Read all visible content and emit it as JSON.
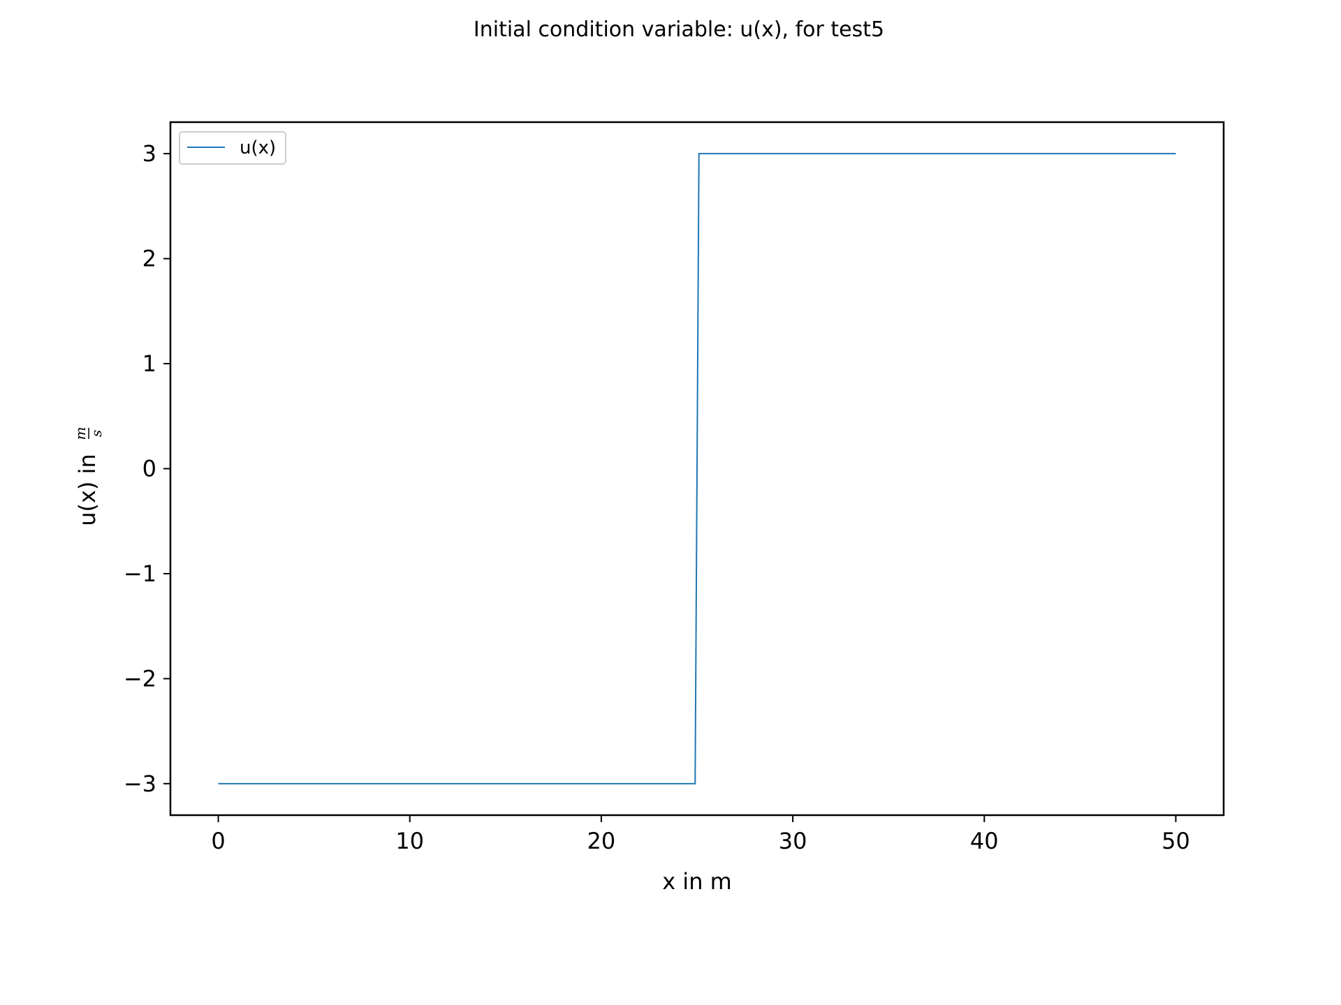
{
  "chart_data": {
    "type": "line",
    "title": "Initial condition variable: u(x), for test5",
    "xlabel": "x in m",
    "ylabel": "u(x) in",
    "ylabel_unit_numerator": "m",
    "ylabel_unit_denominator": "s",
    "xlim": [
      -2.5,
      52.5
    ],
    "ylim": [
      -3.3,
      3.3
    ],
    "xticks": [
      0,
      10,
      20,
      30,
      40,
      50
    ],
    "xtick_labels": [
      "0",
      "10",
      "20",
      "30",
      "40",
      "50"
    ],
    "yticks": [
      -3,
      -2,
      -1,
      0,
      1,
      2,
      3
    ],
    "ytick_labels": [
      "−3",
      "−2",
      "−1",
      "0",
      "1",
      "2",
      "3"
    ],
    "grid": false,
    "legend_position": "top-left",
    "series": [
      {
        "name": "u(x)",
        "color": "#1f77b4",
        "x": [
          0,
          24.9,
          25.1,
          50
        ],
        "y": [
          -3,
          -3,
          3,
          3
        ]
      }
    ]
  }
}
